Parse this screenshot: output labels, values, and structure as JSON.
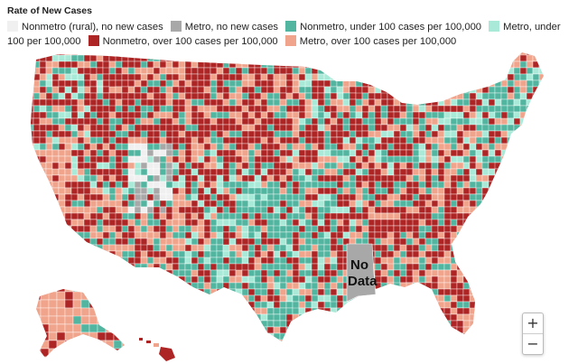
{
  "legend": {
    "title": "Rate of New Cases",
    "items": [
      {
        "id": "nonmetro-none",
        "label": "Nonmetro (rural), no new cases",
        "color": "#f0f0f0"
      },
      {
        "id": "metro-none",
        "label": "Metro, no new cases",
        "color": "#a8a8a8"
      },
      {
        "id": "nonmetro-under",
        "label": "Nonmetro, under 100 cases per 100,000",
        "color": "#52b5a0"
      },
      {
        "id": "metro-under",
        "label": "Metro, under 100 per 100,000",
        "color": "#a8ead7"
      },
      {
        "id": "nonmetro-over",
        "label": "Nonmetro, over 100 cases per 100,000",
        "color": "#ad2524"
      },
      {
        "id": "metro-over",
        "label": "Metro, over 100 cases per 100,000",
        "color": "#f0a48c"
      }
    ]
  },
  "map": {
    "no_data_label_line1": "No",
    "no_data_label_line2": "Data",
    "border_color": "#ffffff"
  },
  "controls": {
    "zoom_in": "+",
    "zoom_out": "−"
  }
}
